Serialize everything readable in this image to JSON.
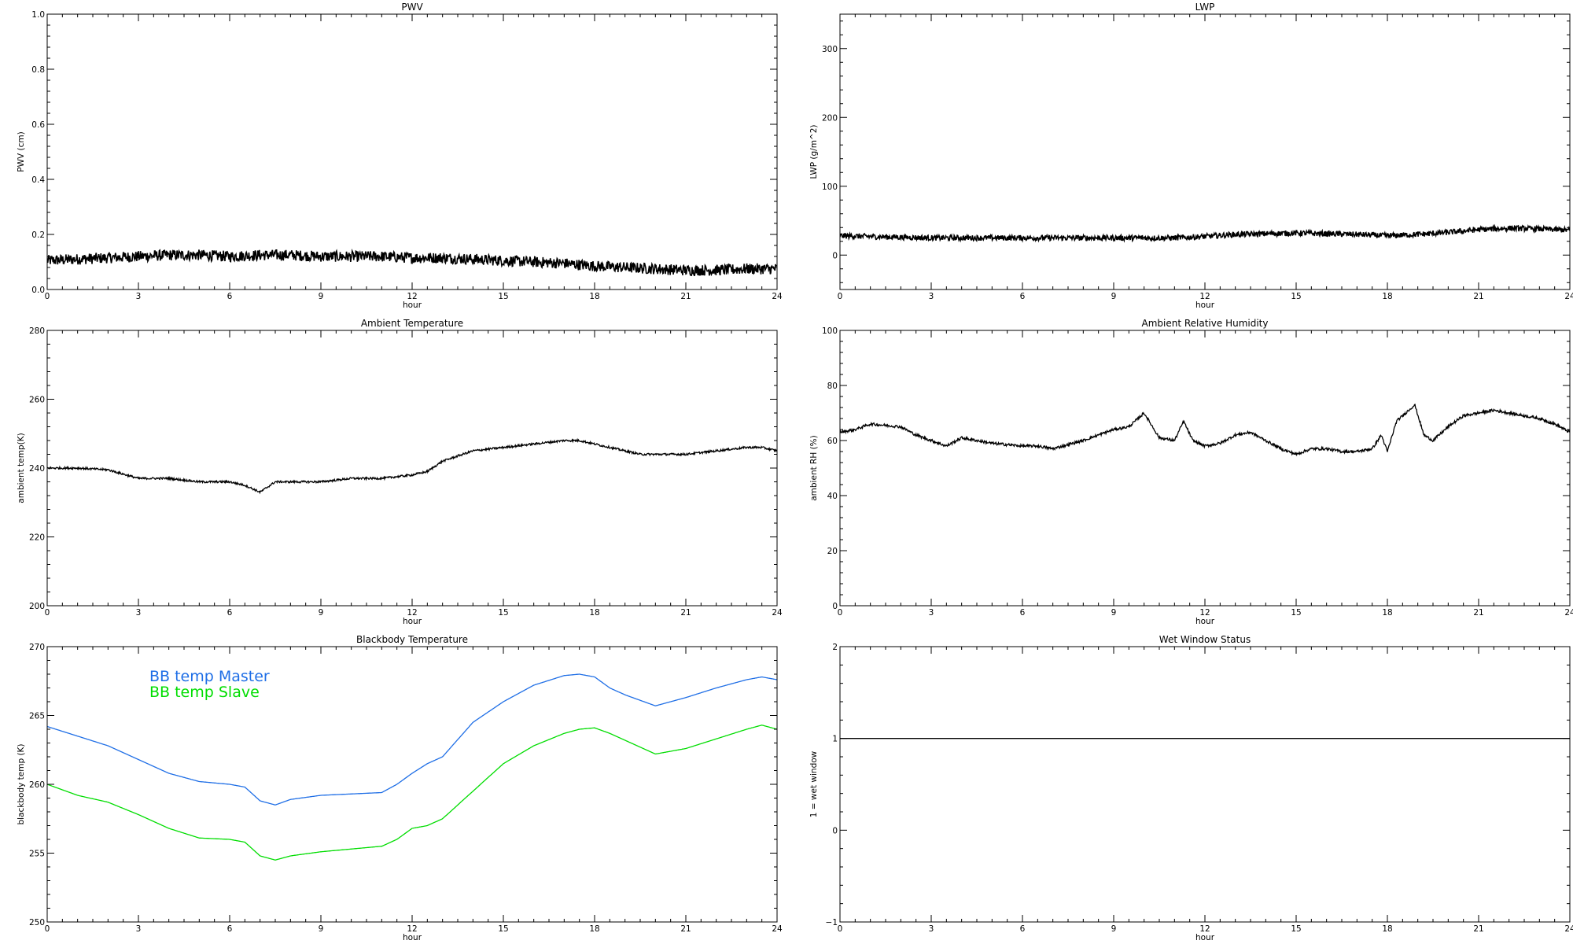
{
  "chart_data": [
    {
      "type": "line",
      "title": "PWV",
      "xlabel": "hour",
      "ylabel": "PWV (cm)",
      "xlim": [
        0,
        24
      ],
      "ylim": [
        0.0,
        1.0
      ],
      "xticks": [
        0,
        3,
        6,
        9,
        12,
        15,
        18,
        21,
        24
      ],
      "yticks": [
        0.0,
        0.2,
        0.4,
        0.6,
        0.8,
        1.0
      ],
      "xtick_labels": [
        "0",
        "3",
        "6",
        "9",
        "12",
        "15",
        "18",
        "21",
        "24"
      ],
      "ytick_labels": [
        "0.0",
        "0.2",
        "0.4",
        "0.6",
        "0.8",
        "1.0"
      ],
      "series": [
        {
          "x": [
            0,
            1,
            2,
            3,
            4,
            5,
            6,
            7,
            8,
            9,
            10,
            11,
            12,
            13,
            14,
            15,
            16,
            17,
            18,
            19,
            20,
            21,
            22,
            23,
            24
          ],
          "y": [
            0.105,
            0.11,
            0.115,
            0.12,
            0.125,
            0.125,
            0.12,
            0.125,
            0.125,
            0.12,
            0.12,
            0.12,
            0.115,
            0.115,
            0.11,
            0.105,
            0.1,
            0.095,
            0.085,
            0.08,
            0.075,
            0.07,
            0.07,
            0.075,
            0.075
          ],
          "color": "#000000",
          "noise": 0.02
        }
      ]
    },
    {
      "type": "line",
      "title": "LWP",
      "xlabel": "hour",
      "ylabel": "LWP (g/m^2)",
      "xlim": [
        0,
        24
      ],
      "ylim": [
        -50,
        350
      ],
      "xticks": [
        0,
        3,
        6,
        9,
        12,
        15,
        18,
        21,
        24
      ],
      "yticks": [
        0,
        100,
        200,
        300
      ],
      "xtick_labels": [
        "0",
        "3",
        "6",
        "9",
        "12",
        "15",
        "18",
        "21",
        "24"
      ],
      "ytick_labels": [
        "0",
        "100",
        "200",
        "300"
      ],
      "series": [
        {
          "x": [
            0,
            1,
            2,
            3,
            4,
            5,
            6,
            7,
            8,
            9,
            10,
            11,
            12,
            13,
            14,
            15,
            16,
            17,
            18,
            19,
            20,
            21,
            22,
            23,
            24
          ],
          "y": [
            28,
            27,
            26,
            25,
            25,
            25,
            25,
            25,
            25,
            25,
            25,
            25,
            27,
            30,
            31,
            32,
            31,
            30,
            28,
            30,
            33,
            37,
            39,
            38,
            36
          ],
          "color": "#000000",
          "noise": 4
        }
      ]
    },
    {
      "type": "line",
      "title": "Ambient Temperature",
      "xlabel": "hour",
      "ylabel": "ambient temp(K)",
      "xlim": [
        0,
        24
      ],
      "ylim": [
        200,
        280
      ],
      "xticks": [
        0,
        3,
        6,
        9,
        12,
        15,
        18,
        21,
        24
      ],
      "yticks": [
        200,
        220,
        240,
        260,
        280
      ],
      "xtick_labels": [
        "0",
        "3",
        "6",
        "9",
        "12",
        "15",
        "18",
        "21",
        "24"
      ],
      "ytick_labels": [
        "200",
        "220",
        "240",
        "260",
        "280"
      ],
      "series": [
        {
          "x": [
            0,
            1,
            2,
            3,
            4,
            5,
            6,
            6.5,
            7,
            7.5,
            8,
            9,
            10,
            11,
            12,
            12.5,
            13,
            14,
            15,
            16,
            17,
            17.5,
            18,
            19,
            19.5,
            20,
            21,
            22,
            23,
            23.5,
            24
          ],
          "y": [
            240,
            240,
            239.5,
            237,
            237,
            236,
            236,
            235,
            233,
            236,
            236,
            236,
            237,
            237,
            238,
            239,
            242,
            245,
            246,
            247,
            248,
            248,
            247,
            245,
            244,
            244,
            244,
            245,
            246,
            246,
            245
          ],
          "color": "#000000",
          "noise": 0.3
        }
      ]
    },
    {
      "type": "line",
      "title": "Ambient Relative Humidity",
      "xlabel": "hour",
      "ylabel": "ambient RH (%)",
      "xlim": [
        0,
        24
      ],
      "ylim": [
        0,
        100
      ],
      "xticks": [
        0,
        3,
        6,
        9,
        12,
        15,
        18,
        21,
        24
      ],
      "yticks": [
        0,
        20,
        40,
        60,
        80,
        100
      ],
      "xtick_labels": [
        "0",
        "3",
        "6",
        "9",
        "12",
        "15",
        "18",
        "21",
        "24"
      ],
      "ytick_labels": [
        "0",
        "20",
        "40",
        "60",
        "80",
        "100"
      ],
      "series": [
        {
          "x": [
            0,
            0.5,
            1,
            2,
            2.5,
            3,
            3.5,
            4,
            5,
            6,
            6.5,
            7,
            8,
            8.5,
            9,
            9.5,
            10,
            10.5,
            11,
            11.3,
            11.6,
            12,
            12.5,
            13,
            13.5,
            14,
            14.5,
            15,
            15.5,
            16,
            16.5,
            17,
            17.5,
            17.8,
            18,
            18.3,
            18.6,
            18.9,
            19.2,
            19.5,
            20,
            20.5,
            21,
            21.5,
            22,
            22.5,
            23,
            23.5,
            24
          ],
          "y": [
            63,
            64,
            66,
            65,
            62,
            60,
            58,
            61,
            59,
            58,
            58,
            57,
            60,
            62,
            64,
            65,
            70,
            61,
            60,
            67,
            60,
            58,
            59,
            62,
            63,
            60,
            57,
            55,
            57,
            57,
            56,
            56,
            57,
            62,
            56,
            67,
            70,
            73,
            62,
            60,
            65,
            69,
            70,
            71,
            70,
            69,
            68,
            66,
            63
          ],
          "color": "#000000",
          "noise": 0.5
        }
      ]
    },
    {
      "type": "line",
      "title": "Blackbody Temperature",
      "xlabel": "hour",
      "ylabel": "blackbody temp (K)",
      "xlim": [
        0,
        24
      ],
      "ylim": [
        250,
        270
      ],
      "xticks": [
        0,
        3,
        6,
        9,
        12,
        15,
        18,
        21,
        24
      ],
      "yticks": [
        250,
        255,
        260,
        265,
        270
      ],
      "xtick_labels": [
        "0",
        "3",
        "6",
        "9",
        "12",
        "15",
        "18",
        "21",
        "24"
      ],
      "ytick_labels": [
        "250",
        "255",
        "260",
        "265",
        "270"
      ],
      "legend": [
        "BB temp Master",
        "BB temp Slave"
      ],
      "series": [
        {
          "name": "BB temp Master",
          "x": [
            0,
            1,
            2,
            3,
            4,
            5,
            6,
            6.5,
            7,
            7.5,
            8,
            9,
            10,
            11,
            11.5,
            12,
            12.5,
            13,
            14,
            15,
            16,
            17,
            17.5,
            18,
            18.5,
            19,
            20,
            21,
            22,
            23,
            23.5,
            24
          ],
          "y": [
            264.2,
            263.5,
            262.8,
            261.8,
            260.8,
            260.2,
            260.0,
            259.8,
            258.8,
            258.5,
            258.9,
            259.2,
            259.3,
            259.4,
            260.0,
            260.8,
            261.5,
            262.0,
            264.5,
            266.0,
            267.2,
            267.9,
            268.0,
            267.8,
            267.0,
            266.5,
            265.7,
            266.3,
            267.0,
            267.6,
            267.8,
            267.6
          ],
          "color": "#1e6ee6"
        },
        {
          "name": "BB temp Slave",
          "x": [
            0,
            1,
            2,
            3,
            4,
            5,
            6,
            6.5,
            7,
            7.5,
            8,
            9,
            10,
            11,
            11.5,
            12,
            12.5,
            13,
            14,
            15,
            16,
            17,
            17.5,
            18,
            18.5,
            19,
            20,
            21,
            22,
            23,
            23.5,
            24
          ],
          "y": [
            260.0,
            259.2,
            258.7,
            257.8,
            256.8,
            256.1,
            256.0,
            255.8,
            254.8,
            254.5,
            254.8,
            255.1,
            255.3,
            255.5,
            256.0,
            256.8,
            257.0,
            257.5,
            259.5,
            261.5,
            262.8,
            263.7,
            264.0,
            264.1,
            263.7,
            263.2,
            262.2,
            262.6,
            263.3,
            264.0,
            264.3,
            264.0
          ],
          "color": "#00dd00"
        }
      ]
    },
    {
      "type": "line",
      "title": "Wet Window Status",
      "xlabel": "hour",
      "ylabel": "1 = wet window",
      "xlim": [
        0,
        24
      ],
      "ylim": [
        -1,
        2
      ],
      "xticks": [
        0,
        3,
        6,
        9,
        12,
        15,
        18,
        21,
        24
      ],
      "yticks": [
        -1,
        0,
        1,
        2
      ],
      "xtick_labels": [
        "0",
        "3",
        "6",
        "9",
        "12",
        "15",
        "18",
        "21",
        "24"
      ],
      "ytick_labels": [
        "−1",
        "0",
        "1",
        "2"
      ],
      "series": [
        {
          "x": [
            0,
            24
          ],
          "y": [
            1,
            1
          ],
          "color": "#000000",
          "noise": 0
        }
      ]
    }
  ]
}
